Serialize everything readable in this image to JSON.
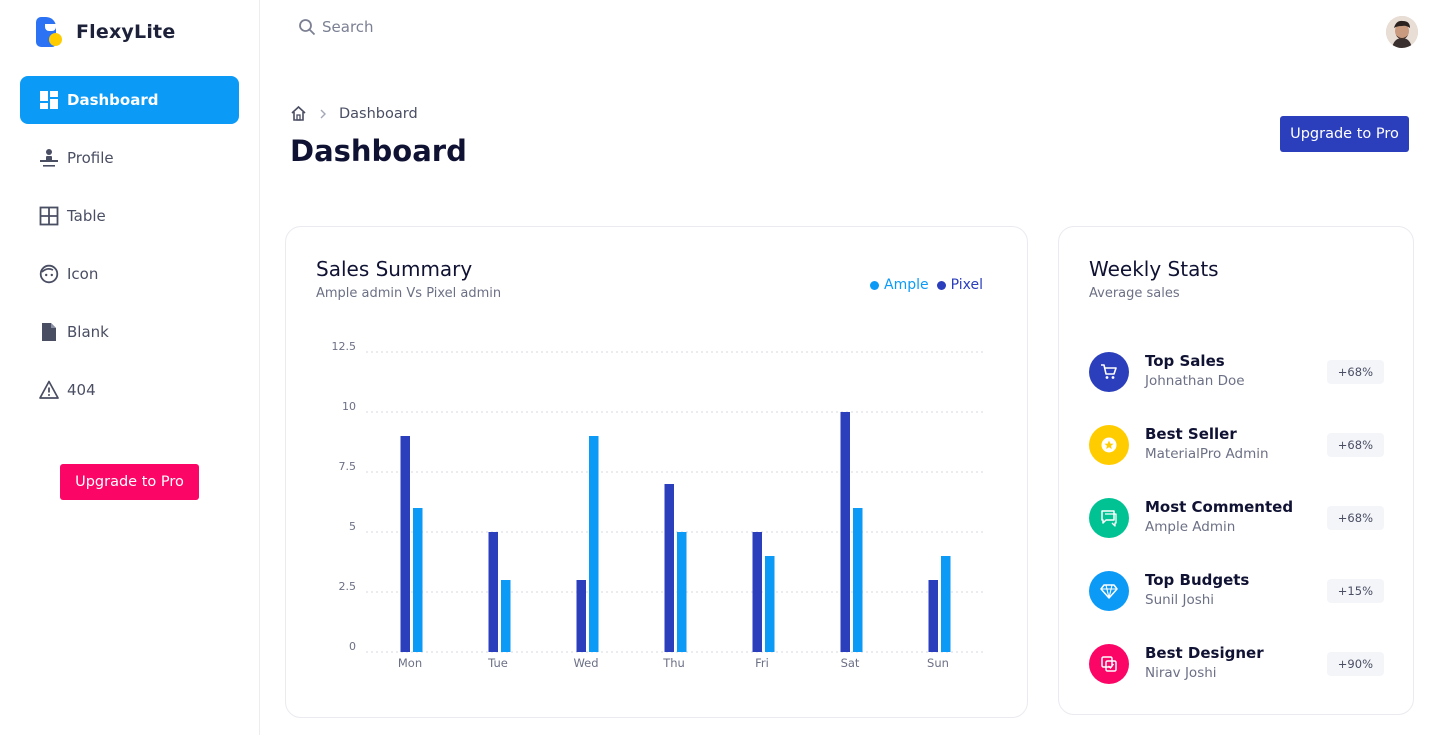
{
  "app": {
    "name": "FlexyLite"
  },
  "sidebar": {
    "items": [
      {
        "label": "Dashboard",
        "icon": "dashboard-icon",
        "active": true
      },
      {
        "label": "Profile",
        "icon": "profile-icon",
        "active": false
      },
      {
        "label": "Table",
        "icon": "table-icon",
        "active": false
      },
      {
        "label": "Icon",
        "icon": "face-icon",
        "active": false
      },
      {
        "label": "Blank",
        "icon": "file-icon",
        "active": false
      },
      {
        "label": "404",
        "icon": "warning-icon",
        "active": false
      }
    ],
    "upgrade_label": "Upgrade to Pro"
  },
  "header": {
    "search_placeholder": "Search",
    "avatar_icon": "user-avatar"
  },
  "page": {
    "breadcrumb": "Dashboard",
    "title": "Dashboard",
    "upgrade_label": "Upgrade to Pro"
  },
  "colors": {
    "primary": "#0c9af7",
    "dark_blue": "#2b3ebc",
    "pink": "#fb0566",
    "yellow": "#ffcc00",
    "green": "#00c292"
  },
  "sales": {
    "title": "Sales Summary",
    "subtitle": "Ample admin Vs Pixel admin",
    "legend": [
      {
        "name": "Ample",
        "color": "#0c9af7"
      },
      {
        "name": "Pixel",
        "color": "#2b3ebc"
      }
    ]
  },
  "chart_data": {
    "type": "bar",
    "categories": [
      "Mon",
      "Tue",
      "Wed",
      "Thu",
      "Fri",
      "Sat",
      "Sun"
    ],
    "series": [
      {
        "name": "Pixel",
        "color": "#2b3ebc",
        "values": [
          9,
          5,
          3,
          7,
          5,
          10,
          3
        ]
      },
      {
        "name": "Ample",
        "color": "#0c9af7",
        "values": [
          6,
          3,
          9,
          5,
          4,
          6,
          4
        ]
      }
    ],
    "yticks": [
      "0",
      "2.5",
      "5",
      "7.5",
      "10",
      "12.5"
    ],
    "ylim": [
      0,
      12.5
    ],
    "grid": true,
    "legend_position": "top-right"
  },
  "weekly": {
    "title": "Weekly Stats",
    "subtitle": "Average sales",
    "items": [
      {
        "title": "Top Sales",
        "subtitle": "Johnathan Doe",
        "badge": "+68%",
        "icon": "cart-icon",
        "color": "#2b3ebc"
      },
      {
        "title": "Best Seller",
        "subtitle": "MaterialPro Admin",
        "badge": "+68%",
        "icon": "star-icon",
        "color": "#ffcc00"
      },
      {
        "title": "Most Commented",
        "subtitle": "Ample Admin",
        "badge": "+68%",
        "icon": "comment-icon",
        "color": "#00c292"
      },
      {
        "title": "Top Budgets",
        "subtitle": "Sunil Joshi",
        "badge": "+15%",
        "icon": "diamond-icon",
        "color": "#0c9af7"
      },
      {
        "title": "Best Designer",
        "subtitle": "Nirav Joshi",
        "badge": "+90%",
        "icon": "design-icon",
        "color": "#fb0566"
      }
    ]
  }
}
